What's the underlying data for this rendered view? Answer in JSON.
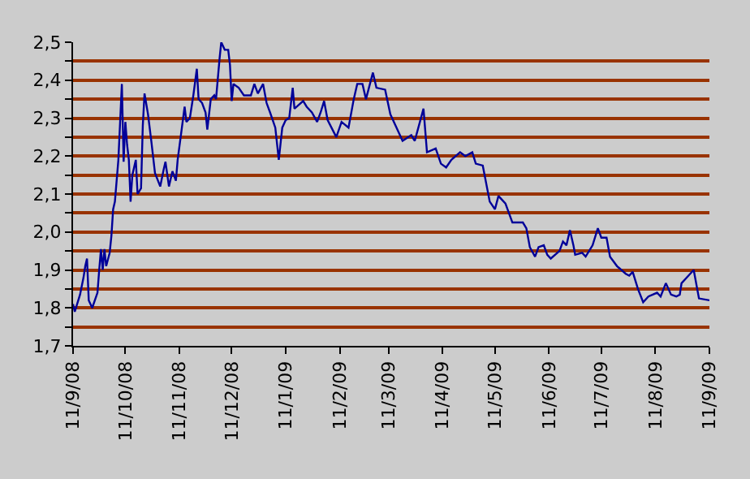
{
  "chart_data": {
    "type": "line",
    "x": [
      "2008-09-11",
      "2008-09-12",
      "2008-09-15",
      "2008-09-17",
      "2008-09-18",
      "2008-09-19",
      "2008-09-20",
      "2008-09-22",
      "2008-09-25",
      "2008-09-26",
      "2008-09-27",
      "2008-09-28",
      "2008-09-29",
      "2008-09-30",
      "2008-10-02",
      "2008-10-03",
      "2008-10-04",
      "2008-10-05",
      "2008-10-07",
      "2008-10-08",
      "2008-10-09",
      "2008-10-10",
      "2008-10-11",
      "2008-10-12",
      "2008-10-13",
      "2008-10-14",
      "2008-10-15",
      "2008-10-17",
      "2008-10-18",
      "2008-10-20",
      "2008-10-21",
      "2008-10-22",
      "2008-10-24",
      "2008-10-26",
      "2008-10-28",
      "2008-10-31",
      "2008-11-02",
      "2008-11-03",
      "2008-11-05",
      "2008-11-07",
      "2008-11-09",
      "2008-11-10",
      "2008-11-12",
      "2008-11-14",
      "2008-11-15",
      "2008-11-17",
      "2008-11-19",
      "2008-11-21",
      "2008-11-22",
      "2008-11-24",
      "2008-11-26",
      "2008-11-27",
      "2008-11-29",
      "2008-12-01",
      "2008-12-02",
      "2008-12-04",
      "2008-12-05",
      "2008-12-07",
      "2008-12-09",
      "2008-12-10",
      "2008-12-11",
      "2008-12-12",
      "2008-12-15",
      "2008-12-18",
      "2008-12-22",
      "2008-12-24",
      "2008-12-26",
      "2008-12-29",
      "2008-12-31",
      "2009-01-02",
      "2009-01-05",
      "2009-01-07",
      "2009-01-09",
      "2009-01-11",
      "2009-01-13",
      "2009-01-15",
      "2009-01-16",
      "2009-01-21",
      "2009-01-23",
      "2009-01-26",
      "2009-01-29",
      "2009-01-31",
      "2009-02-02",
      "2009-02-04",
      "2009-02-09",
      "2009-02-12",
      "2009-02-16",
      "2009-02-19",
      "2009-02-21",
      "2009-02-24",
      "2009-02-26",
      "2009-03-02",
      "2009-03-04",
      "2009-03-09",
      "2009-03-12",
      "2009-03-15",
      "2009-03-19",
      "2009-03-24",
      "2009-03-26",
      "2009-03-31",
      "2009-04-02",
      "2009-04-07",
      "2009-04-10",
      "2009-04-13",
      "2009-04-16",
      "2009-04-21",
      "2009-04-24",
      "2009-04-28",
      "2009-04-30",
      "2009-05-04",
      "2009-05-08",
      "2009-05-11",
      "2009-05-13",
      "2009-05-17",
      "2009-05-21",
      "2009-05-27",
      "2009-05-29",
      "2009-05-31",
      "2009-06-03",
      "2009-06-05",
      "2009-06-08",
      "2009-06-10",
      "2009-06-12",
      "2009-06-17",
      "2009-06-19",
      "2009-06-21",
      "2009-06-23",
      "2009-06-25",
      "2009-06-26",
      "2009-06-30",
      "2009-07-02",
      "2009-07-06",
      "2009-07-09",
      "2009-07-11",
      "2009-07-14",
      "2009-07-16",
      "2009-07-20",
      "2009-07-25",
      "2009-07-27",
      "2009-07-29",
      "2009-08-01",
      "2009-08-04",
      "2009-08-07",
      "2009-08-12",
      "2009-08-14",
      "2009-08-17",
      "2009-08-20",
      "2009-08-23",
      "2009-08-25",
      "2009-08-26",
      "2009-08-30",
      "2009-09-02",
      "2009-09-04",
      "2009-09-05",
      "2009-09-11"
    ],
    "series": [
      {
        "color": "#000099",
        "values": [
          1.81,
          1.79,
          1.835,
          1.88,
          1.91,
          1.93,
          1.82,
          1.8,
          1.84,
          1.9,
          1.955,
          1.9,
          1.955,
          1.91,
          1.945,
          1.99,
          2.06,
          2.08,
          2.19,
          2.29,
          2.39,
          2.185,
          2.29,
          2.23,
          2.19,
          2.08,
          2.15,
          2.19,
          2.1,
          2.115,
          2.28,
          2.365,
          2.31,
          2.235,
          2.155,
          2.12,
          2.165,
          2.185,
          2.12,
          2.16,
          2.135,
          2.19,
          2.26,
          2.33,
          2.29,
          2.3,
          2.36,
          2.43,
          2.35,
          2.34,
          2.315,
          2.27,
          2.35,
          2.36,
          2.35,
          2.455,
          2.5,
          2.48,
          2.48,
          2.44,
          2.345,
          2.39,
          2.38,
          2.36,
          2.36,
          2.39,
          2.365,
          2.39,
          2.34,
          2.315,
          2.275,
          2.19,
          2.275,
          2.295,
          2.3,
          2.38,
          2.325,
          2.345,
          2.33,
          2.315,
          2.29,
          2.315,
          2.345,
          2.295,
          2.25,
          2.29,
          2.275,
          2.35,
          2.39,
          2.39,
          2.35,
          2.42,
          2.38,
          2.375,
          2.31,
          2.28,
          2.24,
          2.255,
          2.24,
          2.325,
          2.21,
          2.22,
          2.18,
          2.17,
          2.19,
          2.21,
          2.2,
          2.21,
          2.18,
          2.175,
          2.08,
          2.06,
          2.095,
          2.075,
          2.025,
          2.025,
          2.01,
          1.96,
          1.935,
          1.96,
          1.965,
          1.94,
          1.93,
          1.95,
          1.975,
          1.965,
          2.005,
          1.965,
          1.94,
          1.945,
          1.935,
          1.965,
          2.01,
          1.985,
          1.985,
          1.935,
          1.91,
          1.89,
          1.885,
          1.895,
          1.85,
          1.815,
          1.83,
          1.84,
          1.83,
          1.865,
          1.835,
          1.83,
          1.835,
          1.865,
          1.885,
          1.9,
          1.85,
          1.825,
          1.82
        ]
      }
    ],
    "xlim": [
      "2008-09-11",
      "2009-09-11"
    ],
    "xticks": [
      {
        "value": "2008-09-11",
        "label": "11/9/08"
      },
      {
        "value": "2008-10-11",
        "label": "11/10/08"
      },
      {
        "value": "2008-11-11",
        "label": "11/11/08"
      },
      {
        "value": "2008-12-11",
        "label": "11/12/08"
      },
      {
        "value": "2009-01-11",
        "label": "11/1/09"
      },
      {
        "value": "2009-02-11",
        "label": "11/2/09"
      },
      {
        "value": "2009-03-11",
        "label": "11/3/09"
      },
      {
        "value": "2009-04-11",
        "label": "11/4/09"
      },
      {
        "value": "2009-05-11",
        "label": "11/5/09"
      },
      {
        "value": "2009-06-11",
        "label": "11/6/09"
      },
      {
        "value": "2009-07-11",
        "label": "11/7/09"
      },
      {
        "value": "2009-08-11",
        "label": "11/8/09"
      },
      {
        "value": "2009-09-11",
        "label": "11/9/09"
      }
    ],
    "ylim": [
      1.7,
      2.5
    ],
    "yticks": [
      {
        "value": 1.7,
        "label": "1,7"
      },
      {
        "value": 1.75,
        "label": null
      },
      {
        "value": 1.8,
        "label": "1,8"
      },
      {
        "value": 1.85,
        "label": null
      },
      {
        "value": 1.9,
        "label": "1,9"
      },
      {
        "value": 1.95,
        "label": null
      },
      {
        "value": 2.0,
        "label": "2,0"
      },
      {
        "value": 2.05,
        "label": null
      },
      {
        "value": 2.1,
        "label": "2,1"
      },
      {
        "value": 2.15,
        "label": null
      },
      {
        "value": 2.2,
        "label": "2,2"
      },
      {
        "value": 2.25,
        "label": null
      },
      {
        "value": 2.3,
        "label": "2,3"
      },
      {
        "value": 2.35,
        "label": null
      },
      {
        "value": 2.4,
        "label": "2,4"
      },
      {
        "value": 2.45,
        "label": null
      },
      {
        "value": 2.5,
        "label": "2,5"
      }
    ],
    "grid": "y",
    "marker": "none",
    "line_style": "solid"
  }
}
